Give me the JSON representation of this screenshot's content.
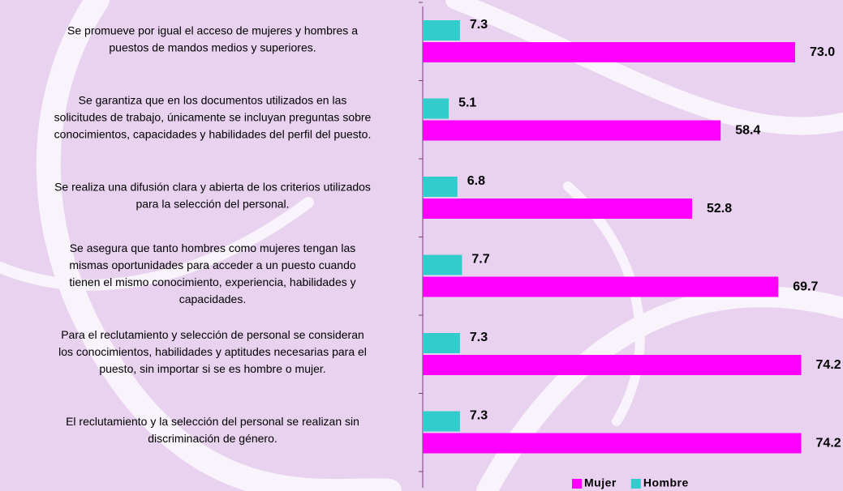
{
  "chart_data": {
    "type": "barh",
    "categories": [
      [
        "Se promueve  por igual el acceso de mujeres y hombres a",
        "puestos de mandos medios  y superiores."
      ],
      [
        "Se garantiza que en los documentos utilizados en las",
        "solicitudes de trabajo, únicamente se incluyan preguntas sobre",
        "conocimientos, capacidades y habilidades del perfil del puesto."
      ],
      [
        "Se realiza una difusión clara y abierta de los criterios utilizados",
        "para la selección del personal."
      ],
      [
        "Se asegura que tanto hombres como mujeres tengan las",
        "mismas oportunidades para acceder a un puesto cuando",
        "tienen el mismo conocimiento, experiencia, habilidades y",
        "capacidades."
      ],
      [
        "Para el reclutamiento y selección de personal se consideran",
        "los conocimientos, habilidades y aptitudes necesarias para el",
        "puesto, sin importar si se es hombre o mujer."
      ],
      [
        "El reclutamiento y la selección del personal se realizan sin",
        "discriminación de género."
      ]
    ],
    "series": [
      {
        "name": "Hombre",
        "color": "#33cccc",
        "values": [
          7.3,
          5.1,
          6.8,
          7.7,
          7.3,
          7.3
        ]
      },
      {
        "name": "Mujer",
        "color": "#ff00ff",
        "values": [
          73.0,
          58.4,
          52.8,
          69.7,
          74.2,
          74.2
        ],
        "value_labels": [
          "73.0",
          "58.4",
          "52.8",
          "69.7",
          "74.2",
          "74.2"
        ]
      }
    ],
    "xlim": [
      0,
      80
    ],
    "legend": "bottom"
  }
}
